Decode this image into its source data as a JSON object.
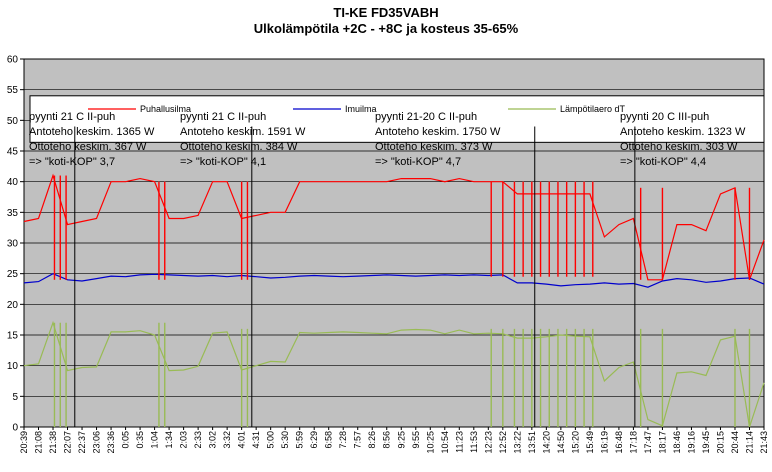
{
  "chart_data": {
    "type": "line",
    "title": "TI-KE FD35VABH",
    "subtitle": "Ulkolämpötila +2C - +8C ja kosteus 35-65%",
    "ylim": [
      0,
      60
    ],
    "yticks": [
      0,
      5,
      10,
      15,
      20,
      25,
      30,
      35,
      40,
      45,
      50,
      55,
      60
    ],
    "grid": true,
    "legend_position": "top",
    "x_labels": [
      "20:39",
      "21:08",
      "21:38",
      "22:07",
      "22:37",
      "23:06",
      "23:36",
      "0:05",
      "0:35",
      "1:04",
      "1:34",
      "2:03",
      "2:33",
      "3:02",
      "3:32",
      "4:01",
      "4:31",
      "5:00",
      "5:30",
      "5:59",
      "6:29",
      "6:58",
      "7:28",
      "7:57",
      "8:26",
      "8:56",
      "9:25",
      "9:55",
      "10:25",
      "10:54",
      "11:23",
      "11:53",
      "12:23",
      "12:52",
      "13:22",
      "13:51",
      "14:20",
      "14:50",
      "15:20",
      "15:49",
      "16:19",
      "16:48",
      "17:18",
      "17:47",
      "18:17",
      "18:46",
      "19:16",
      "19:45",
      "20:15",
      "20:44",
      "21:14",
      "21:43"
    ],
    "x": [
      0,
      1,
      2,
      3,
      4,
      5,
      6,
      7,
      8,
      9,
      10,
      11,
      12,
      13,
      14,
      15,
      16,
      17,
      18,
      19,
      20,
      21,
      22,
      23,
      24,
      25,
      26,
      27,
      28,
      29,
      30,
      31,
      32,
      33,
      34,
      35,
      36,
      37,
      38,
      39,
      40,
      41,
      42,
      43,
      44,
      45,
      46,
      47,
      48,
      49,
      50,
      51
    ],
    "series": [
      {
        "name": "Puhallusilma",
        "color": "#ff0000",
        "values": [
          33.5,
          34,
          41,
          33,
          33.5,
          34,
          40,
          40,
          40.5,
          40,
          34,
          34,
          34.5,
          40,
          40,
          34,
          34.5,
          35,
          35,
          40,
          40,
          40,
          40,
          40,
          40,
          40,
          40.5,
          40.5,
          40.5,
          40,
          40.5,
          40,
          40,
          40,
          38,
          38,
          38,
          38,
          38,
          38,
          31,
          33,
          34,
          24,
          24,
          33,
          33,
          32,
          38,
          39,
          24,
          30.5
        ]
      },
      {
        "name": "Imuilma",
        "color": "#0000cc",
        "values": [
          23.5,
          23.7,
          25,
          24,
          23.8,
          24.2,
          24.6,
          24.5,
          24.8,
          24.9,
          24.8,
          24.7,
          24.6,
          24.7,
          24.5,
          24.7,
          24.5,
          24.3,
          24.4,
          24.6,
          24.7,
          24.6,
          24.5,
          24.6,
          24.7,
          24.8,
          24.7,
          24.6,
          24.7,
          24.8,
          24.7,
          24.8,
          24.7,
          24.8,
          23.5,
          23.5,
          23.3,
          23,
          23.2,
          23.3,
          23.5,
          23.3,
          23.4,
          22.8,
          23.8,
          24.2,
          24,
          23.6,
          23.8,
          24.2,
          24.3,
          23.3
        ]
      },
      {
        "name": "Lämpötilaero dT",
        "color": "#99bb55",
        "values": [
          10,
          10.3,
          17,
          9.2,
          9.7,
          9.8,
          15.5,
          15.5,
          15.7,
          15,
          9.2,
          9.3,
          9.9,
          15.3,
          15.5,
          9.3,
          10,
          10.7,
          10.6,
          15.4,
          15.3,
          15.4,
          15.5,
          15.4,
          15.3,
          15.2,
          15.8,
          15.9,
          15.8,
          15.2,
          15.8,
          15.2,
          15.3,
          15.2,
          14.5,
          14.5,
          14.7,
          15,
          14.8,
          14.7,
          7.5,
          9.7,
          10.6,
          1.2,
          0.2,
          8.8,
          9,
          8.4,
          14.2,
          14.8,
          0,
          7.2
        ]
      }
    ],
    "spikes": [
      {
        "series": 0,
        "x": [
          2.1,
          2.5,
          2.9
        ],
        "min": 24,
        "max": 41
      },
      {
        "series": 2,
        "x": [
          2.1,
          2.5,
          2.9
        ],
        "min": 0,
        "max": 17
      },
      {
        "series": 0,
        "x": [
          9.3,
          9.7
        ],
        "min": 24,
        "max": 40
      },
      {
        "series": 2,
        "x": [
          9.3,
          9.7
        ],
        "min": 0,
        "max": 17
      },
      {
        "series": 0,
        "x": [
          15,
          15.4
        ],
        "min": 24,
        "max": 40
      },
      {
        "series": 2,
        "x": [
          15,
          15.4
        ],
        "min": 0,
        "max": 16
      },
      {
        "series": 0,
        "x": [
          32.2,
          33,
          33.8,
          34.4,
          35,
          35.6,
          36.2,
          36.8,
          37.4,
          38,
          38.6,
          39.2
        ],
        "min": 24.5,
        "max": 40
      },
      {
        "series": 2,
        "x": [
          32.2,
          33,
          33.8,
          34.4,
          35,
          35.6,
          36.2,
          36.8,
          37.4,
          38,
          38.6,
          39.2
        ],
        "min": 0,
        "max": 16
      },
      {
        "series": 0,
        "x": [
          42.5,
          44,
          49,
          50
        ],
        "min": 24,
        "max": 39
      },
      {
        "series": 2,
        "x": [
          42.5,
          44,
          49,
          50
        ],
        "min": 0,
        "max": 16
      }
    ],
    "dividers": [
      3.5,
      15.7,
      35.2,
      42.1
    ],
    "annotations": [
      {
        "lines": [
          "pyynti 21 C II-puh",
          "Antoteho keskim. 1365 W",
          "Ottoteho keskim. 367 W",
          "=> \"koti-KOP\" 3,7"
        ]
      },
      {
        "lines": [
          "pyynti 21 C II-puh",
          "Antoteho keskim. 1591 W",
          "Ottoteho keskim. 384 W",
          "=> \"koti-KOP\" 4,1"
        ]
      },
      {
        "lines": [
          "pyynti 21-20 C II-puh",
          "Antoteho keskim. 1750 W",
          "Ottoteho keskim. 373 W",
          "=> \"koti-KOP\" 4,7"
        ]
      },
      {
        "lines": [
          "pyynti 20 C III-puh",
          "Antoteho keskim. 1323 W",
          "Ottoteho keskim. 303 W",
          "=> \"koti-KOP\" 4,4"
        ]
      }
    ]
  }
}
